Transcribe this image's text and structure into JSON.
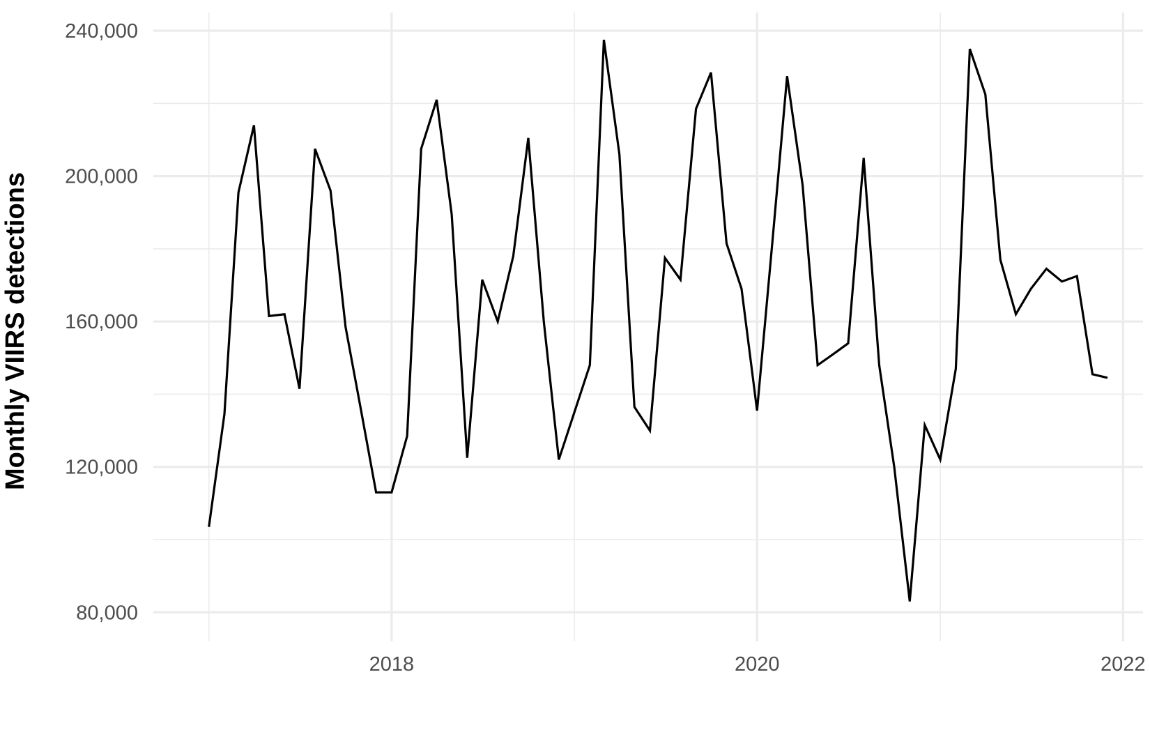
{
  "chart_data": {
    "type": "line",
    "title": "",
    "xlabel": "",
    "ylabel": "Monthly VIIRS detections",
    "x_scale": "date",
    "x": [
      "2017-01",
      "2017-02",
      "2017-03",
      "2017-04",
      "2017-05",
      "2017-06",
      "2017-07",
      "2017-08",
      "2017-09",
      "2017-10",
      "2017-11",
      "2017-12",
      "2018-01",
      "2018-02",
      "2018-03",
      "2018-04",
      "2018-05",
      "2018-06",
      "2018-07",
      "2018-08",
      "2018-09",
      "2018-10",
      "2018-11",
      "2018-12",
      "2019-01",
      "2019-02",
      "2019-03",
      "2019-04",
      "2019-05",
      "2019-06",
      "2019-07",
      "2019-08",
      "2019-09",
      "2019-10",
      "2019-11",
      "2019-12",
      "2020-01",
      "2020-02",
      "2020-03",
      "2020-04",
      "2020-05",
      "2020-06",
      "2020-07",
      "2020-08",
      "2020-09",
      "2020-10",
      "2020-11",
      "2020-12",
      "2021-01",
      "2021-02",
      "2021-03",
      "2021-04",
      "2021-05",
      "2021-06",
      "2021-07",
      "2021-08",
      "2021-09",
      "2021-10",
      "2021-11",
      "2021-12"
    ],
    "series": [
      {
        "values": [
          103500,
          134500,
          195500,
          214000,
          161500,
          162000,
          141500,
          207500,
          196000,
          158500,
          135500,
          113000,
          113000,
          128500,
          207500,
          221000,
          189500,
          122500,
          171500,
          160000,
          178000,
          210500,
          160000,
          122000,
          135000,
          148000,
          237500,
          206000,
          136500,
          130000,
          177500,
          171500,
          218500,
          228500,
          181500,
          169000,
          135500,
          182500,
          227500,
          197500,
          148000,
          151000,
          154000,
          205000,
          148000,
          120000,
          83000,
          131500,
          122000,
          147000,
          235000,
          222500,
          177000,
          162000,
          169000,
          174500,
          171000,
          172500,
          145500,
          144500
        ],
        "color": "#000000"
      }
    ],
    "ylim": [
      72000,
      245000
    ],
    "xlim": [
      "2016-09-12",
      "2022-02-10"
    ],
    "y_ticks": [
      80000,
      120000,
      160000,
      200000,
      240000
    ],
    "y_tick_labels": [
      "80,000",
      "120,000",
      "160,000",
      "200,000",
      "240,000"
    ],
    "x_ticks": [
      "2018-01-01",
      "2020-01-01",
      "2022-01-01"
    ],
    "x_tick_labels": [
      "2018",
      "2020",
      "2022"
    ],
    "y_minor_ticks": [
      100000,
      140000,
      180000,
      220000
    ],
    "x_minor_ticks": [
      "2017-01-01",
      "2019-01-01",
      "2021-01-01"
    ],
    "grid": true,
    "legend": "none",
    "colors": {
      "grid": "#ebebeb",
      "line": "#000000",
      "tick_text": "#4d4d4d",
      "title_text": "#000000"
    }
  }
}
